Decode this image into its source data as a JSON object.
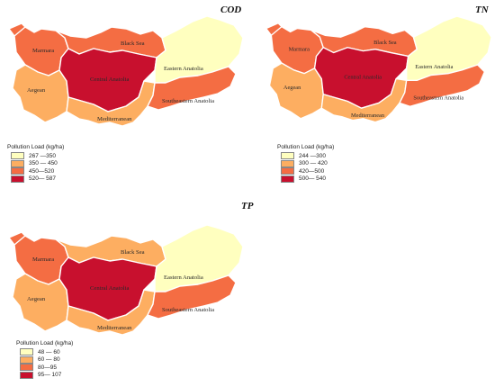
{
  "regions": [
    "Marmara",
    "Black Sea",
    "Aegean",
    "Central Anatolia",
    "Eastern Anatolia",
    "Mediterranean",
    "Southeastern Anatolia"
  ],
  "colors": {
    "class1": "#ffffbf",
    "class2": "#fdae61",
    "class3": "#f46d43",
    "class4": "#c8102e"
  },
  "panels": [
    {
      "title": "COD",
      "legend_title": "Pollution Load (kg/ha)",
      "legend": [
        {
          "label": "267 —350",
          "class": "class1"
        },
        {
          "label": "350 — 450",
          "class": "class2"
        },
        {
          "label": "450—520",
          "class": "class3"
        },
        {
          "label": "520— 587",
          "class": "class4"
        }
      ],
      "region_class": {
        "Marmara": "class3",
        "Black Sea": "class3",
        "Aegean": "class2",
        "Central Anatolia": "class4",
        "Eastern Anatolia": "class1",
        "Mediterranean": "class2",
        "Southeastern Anatolia": "class3"
      },
      "region_labels": {
        "Marmara": "Marmara",
        "Black Sea": "Black Sea",
        "Aegean": "Aegean",
        "Central Anatolia": "Central Anatolia",
        "Eastern Anatolia": "Eastern Anatolia",
        "Mediterranean": "Mediterranean",
        "Southeastern Anatolia": "Southeastern Anatolia"
      }
    },
    {
      "title": "TN",
      "legend_title": "Pollution Load (kg/ha)",
      "legend": [
        {
          "label": "244 —300",
          "class": "class1"
        },
        {
          "label": "300 — 420",
          "class": "class2"
        },
        {
          "label": "420—500",
          "class": "class3"
        },
        {
          "label": "500— 540",
          "class": "class4"
        }
      ],
      "region_class": {
        "Marmara": "class3",
        "Black Sea": "class3",
        "Aegean": "class2",
        "Central Anatolia": "class4",
        "Eastern Anatolia": "class1",
        "Mediterranean": "class2",
        "Southeastern Anatolia": "class3"
      },
      "region_labels": {
        "Marmara": "Marmara",
        "Black Sea": "Black Sea",
        "Aegean": "Aegean",
        "Central Anatolia": "Central Anatolia",
        "Eastern Anatolia": "Eastern Anatolia",
        "Mediterranean": "Mediterranean",
        "Southeastern Anatolia": "Southeastern Anatolia"
      }
    },
    {
      "title": "TP",
      "legend_title": "Pollution Load (kg/ha)",
      "legend": [
        {
          "label": "48 — 60",
          "class": "class1"
        },
        {
          "label": "60 — 80",
          "class": "class2"
        },
        {
          "label": "80—95",
          "class": "class3"
        },
        {
          "label": "95— 107",
          "class": "class4"
        }
      ],
      "region_class": {
        "Marmara": "class3",
        "Black Sea": "class2",
        "Aegean": "class2",
        "Central Anatolia": "class4",
        "Eastern Anatolia": "class1",
        "Mediterranean": "class2",
        "Southeastern Anatolia": "class3"
      },
      "region_labels": {
        "Marmara": "Marmara",
        "Black Sea": "Black Sea",
        "Aegean": "Aegean",
        "Central Anatolia": "Central Anatolia",
        "Eastern Anatolia": "Eastern Anatolia",
        "Mediterranean": "Mediterranean",
        "Southeastern Anatolia": "Southeastern Anatolia"
      }
    }
  ]
}
